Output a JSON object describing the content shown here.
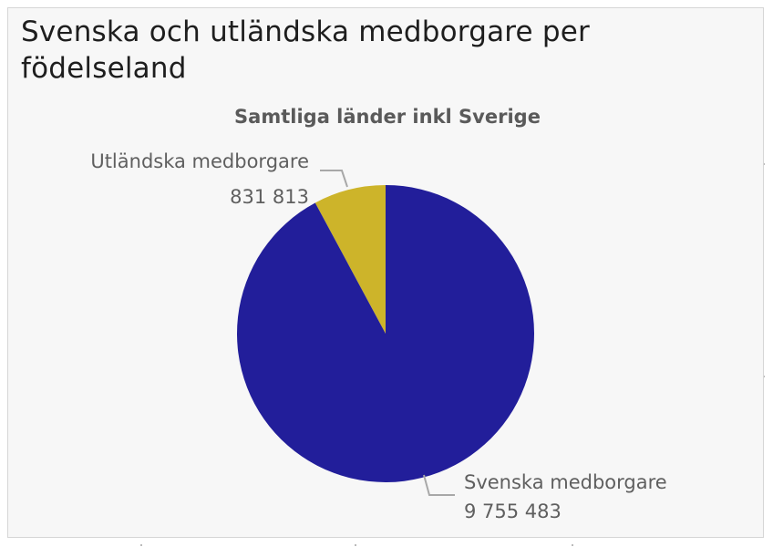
{
  "page": {
    "title": "Svenska och utländska medborgare per födelseland"
  },
  "chart_data": {
    "type": "pie",
    "title": "Samtliga länder inkl Sverige",
    "slices": [
      {
        "label": "Utländska medborgare",
        "value": 831813,
        "value_label": "831 813",
        "color": "#CDB42A"
      },
      {
        "label": "Svenska medborgare",
        "value": 9755483,
        "value_label": "9 755 483",
        "color": "#221E9A"
      }
    ],
    "legend": "none",
    "grid": false
  },
  "colors": {
    "background": "#f7f7f7",
    "title_text": "#1e1e1e",
    "label_text": "#5f5f5f",
    "leader_line": "#a8a8a8"
  }
}
